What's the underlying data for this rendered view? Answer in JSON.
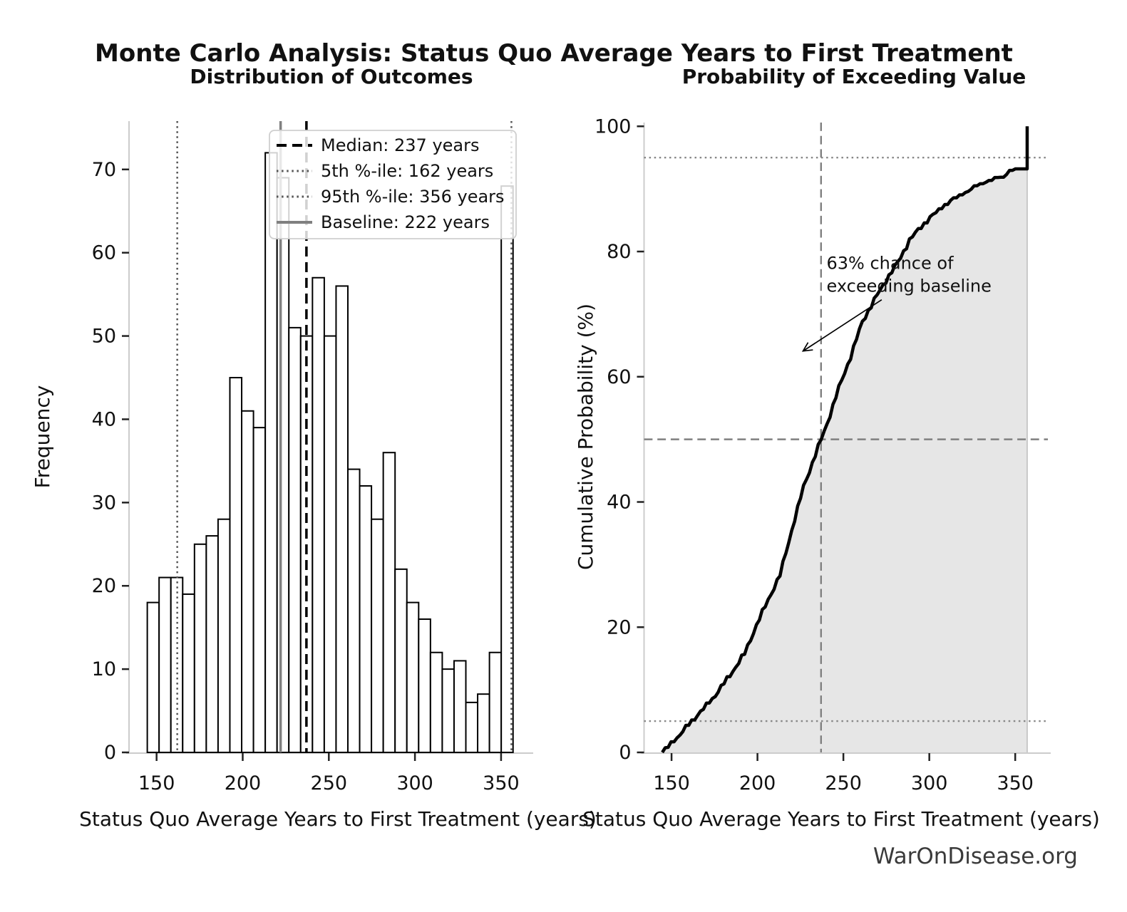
{
  "main_title": "Monte Carlo Analysis: Status Quo Average Years to First Treatment",
  "watermark": "WarOnDisease.org",
  "colors": {
    "bar_fill": "#ffffff",
    "bar_edge": "#000000",
    "median_line": "#000000",
    "percentile_line": "#555555",
    "baseline_line": "#808080",
    "guide_dashed": "#808080",
    "guide_dotted": "#888888",
    "spine": "#cccccc",
    "tick": "#222222",
    "cdf_curve": "#000000",
    "cdf_fill": "#e6e6e6",
    "cdf_fill_edge": "#c9c9c9",
    "legend_border": "#cfcfcf"
  },
  "chart_data": [
    {
      "type": "bar",
      "title": "Distribution of Outcomes",
      "xlabel": "Status Quo Average Years to First Treatment (years)",
      "ylabel": "Frequency",
      "xlim": [
        134,
        367
      ],
      "ylim": [
        0,
        75.8
      ],
      "xticks": [
        150,
        200,
        250,
        300,
        350
      ],
      "yticks": [
        0,
        10,
        20,
        30,
        40,
        50,
        60,
        70
      ],
      "grid": false,
      "legend_position": "upper center",
      "bins": {
        "start": 144.6,
        "width": 6.85,
        "count": 31
      },
      "frequencies": [
        18,
        21,
        21,
        19,
        25,
        26,
        28,
        45,
        41,
        39,
        72,
        69,
        51,
        50,
        57,
        50,
        56,
        34,
        32,
        28,
        36,
        22,
        18,
        16,
        12,
        10,
        11,
        6,
        7,
        12,
        68
      ],
      "total_simulations": 1000,
      "reference_lines": [
        {
          "label": "Median: 237 years",
          "value": 237,
          "style": "dashed",
          "color": "#000000",
          "width": 3.5
        },
        {
          "label": "5th %-ile: 162 years",
          "value": 162,
          "style": "dotted",
          "color": "#555555",
          "width": 2.5
        },
        {
          "label": "95th %-ile: 356 years",
          "value": 356,
          "style": "dotted",
          "color": "#555555",
          "width": 2.5
        },
        {
          "label": "Baseline: 222 years",
          "value": 222,
          "style": "solid",
          "color": "#808080",
          "width": 3.5
        }
      ]
    },
    {
      "type": "line",
      "title": "Probability of Exceeding Value",
      "xlabel": "Status Quo Average Years to First Treatment (years)",
      "ylabel": "Cumulative Probability (%)",
      "xlim": [
        134,
        369
      ],
      "ylim": [
        0,
        100.6
      ],
      "xticks": [
        150,
        200,
        250,
        300,
        350
      ],
      "yticks": [
        0,
        20,
        40,
        60,
        80,
        100
      ],
      "grid": false,
      "cdf_points": [
        [
          144.6,
          0
        ],
        [
          151.45,
          1.8
        ],
        [
          158.3,
          3.9
        ],
        [
          165.15,
          6.0
        ],
        [
          172.0,
          7.9
        ],
        [
          178.85,
          10.4
        ],
        [
          185.7,
          13.0
        ],
        [
          192.55,
          15.8
        ],
        [
          199.4,
          20.3
        ],
        [
          206.25,
          24.4
        ],
        [
          213.1,
          28.3
        ],
        [
          219.95,
          35.5
        ],
        [
          226.8,
          42.4
        ],
        [
          233.65,
          47.5
        ],
        [
          240.5,
          52.5
        ],
        [
          247.35,
          58.2
        ],
        [
          254.2,
          63.2
        ],
        [
          261.05,
          68.8
        ],
        [
          267.9,
          72.2
        ],
        [
          274.75,
          75.4
        ],
        [
          281.6,
          78.2
        ],
        [
          288.45,
          81.8
        ],
        [
          295.3,
          84.0
        ],
        [
          302.15,
          85.8
        ],
        [
          309.0,
          87.4
        ],
        [
          315.85,
          88.6
        ],
        [
          322.7,
          89.6
        ],
        [
          329.55,
          90.7
        ],
        [
          336.4,
          91.3
        ],
        [
          343.25,
          92.0
        ],
        [
          350.1,
          93.2
        ],
        [
          356.95,
          93.2
        ]
      ],
      "terminal_jump": {
        "x": 356.95,
        "from": 93.2,
        "to": 100
      },
      "guides_horizontal": [
        {
          "value": 5,
          "style": "dotted"
        },
        {
          "value": 50,
          "style": "dashed"
        },
        {
          "value": 95,
          "style": "dotted"
        }
      ],
      "guides_vertical": [
        {
          "value": 237,
          "style": "dashed"
        }
      ],
      "annotation": {
        "text_lines": [
          "63% chance of",
          "exceeding baseline"
        ],
        "text_xy": [
          240.2,
          77.2
        ],
        "arrow_from": [
          272.3,
          72.3
        ],
        "arrow_to": [
          226.5,
          64.1
        ]
      }
    }
  ]
}
